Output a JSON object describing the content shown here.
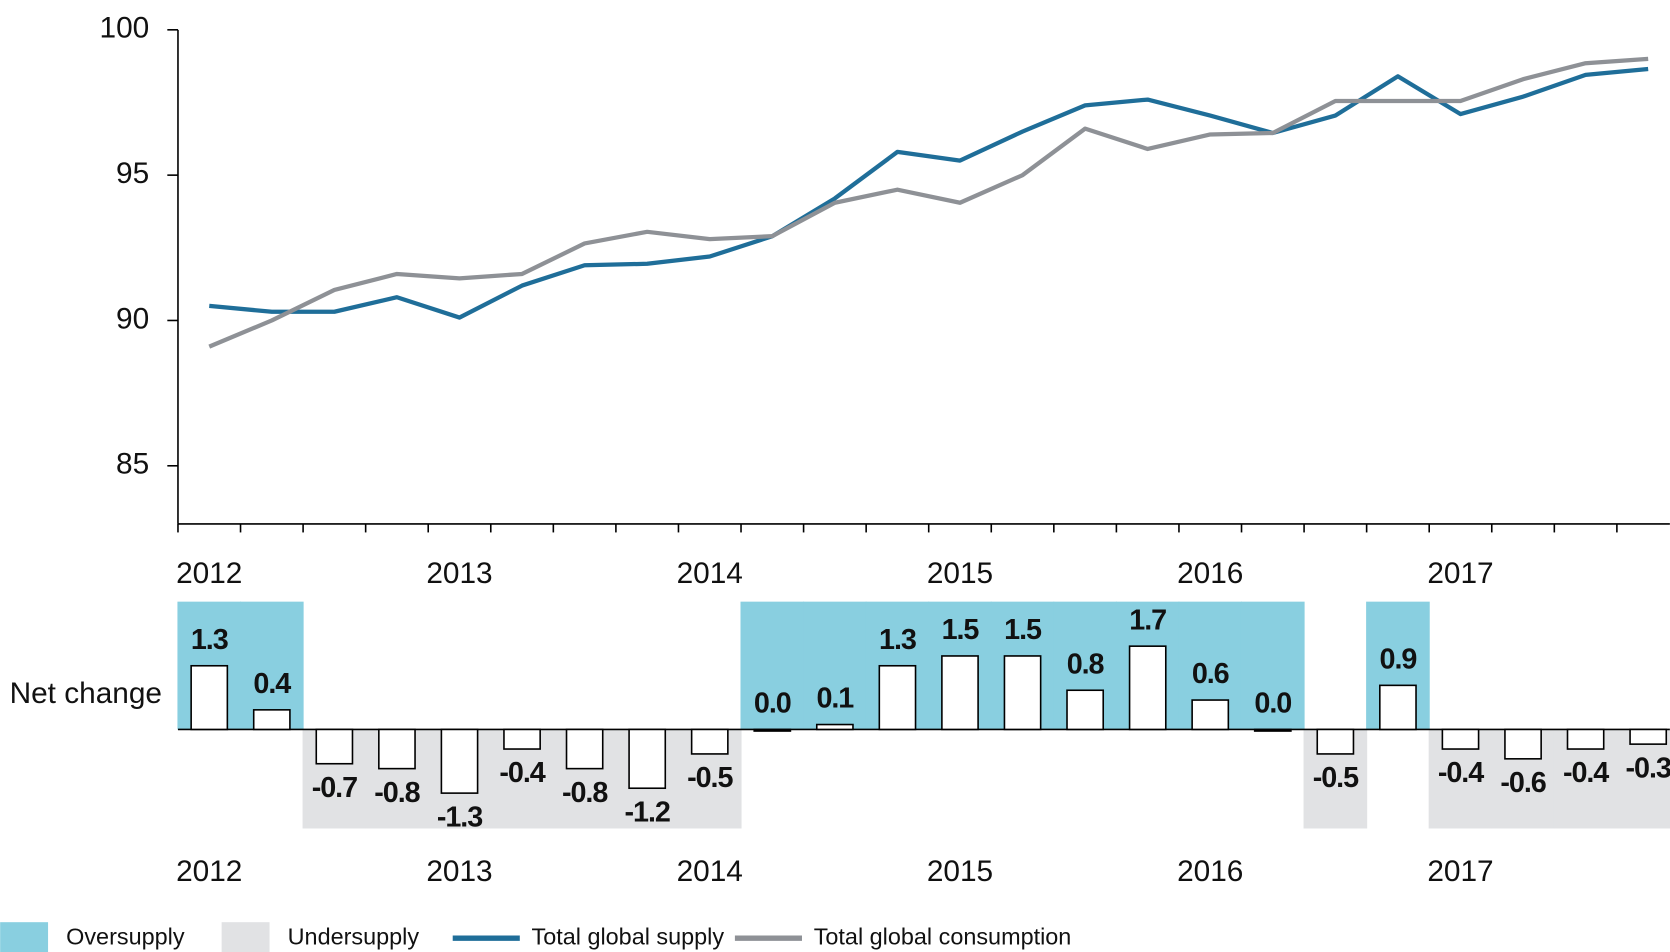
{
  "chart_data": [
    {
      "type": "line",
      "categories": [
        "2012",
        null,
        null,
        null,
        "2013",
        null,
        null,
        null,
        "2014",
        null,
        null,
        null,
        "2015",
        null,
        null,
        null,
        "2016",
        null,
        null,
        null,
        "2017",
        null,
        null,
        null
      ],
      "ylim": [
        83,
        100
      ],
      "yticks": [
        85,
        90,
        95,
        100
      ],
      "series": [
        {
          "name": "Total global supply",
          "color": "#1f6e99",
          "values": [
            90.5,
            90.3,
            90.3,
            90.8,
            90.1,
            91.2,
            91.9,
            91.95,
            92.2,
            92.9,
            94.2,
            95.8,
            95.5,
            96.5,
            97.4,
            97.6,
            97.05,
            96.45,
            97.05,
            98.4,
            97.1,
            97.7,
            98.45,
            98.65
          ]
        },
        {
          "name": "Total global consumption",
          "color": "#8e9196",
          "values": [
            89.1,
            90.0,
            91.05,
            91.6,
            91.45,
            91.6,
            92.65,
            93.05,
            92.8,
            92.9,
            94.05,
            94.5,
            94.05,
            95.0,
            96.6,
            95.9,
            96.4,
            96.45,
            97.55,
            97.55,
            97.55,
            98.3,
            98.85,
            99.0
          ]
        }
      ]
    },
    {
      "type": "bar",
      "ylabel": "Net change",
      "categories": [
        "2012",
        null,
        null,
        null,
        "2013",
        null,
        null,
        null,
        "2014",
        null,
        null,
        null,
        "2015",
        null,
        null,
        null,
        "2016",
        null,
        null,
        null,
        "2017",
        null,
        null,
        null
      ],
      "values": [
        1.3,
        0.4,
        -0.7,
        -0.8,
        -1.3,
        -0.4,
        -0.8,
        -1.2,
        -0.5,
        0.0,
        0.1,
        1.3,
        1.5,
        1.5,
        0.8,
        1.7,
        0.6,
        0.0,
        -0.5,
        0.9,
        -0.4,
        -0.6,
        -0.4,
        -0.3
      ],
      "value_labels": [
        "1.3",
        "0.4",
        "-0.7",
        "-0.8",
        "-1.3",
        "-0.4",
        "-0.8",
        "-1.2",
        "-0.5",
        "0.0",
        "0.1",
        "1.3",
        "1.5",
        "1.5",
        "0.8",
        "1.7",
        "0.6",
        "0.0",
        "-0.5",
        "0.9",
        "-0.4",
        "-0.6",
        "-0.4",
        "-0.3"
      ],
      "shading": [
        {
          "name": "Oversupply",
          "color": "#89cfe0"
        },
        {
          "name": "Undersupply",
          "color": "#e1e2e4"
        }
      ]
    }
  ]
}
